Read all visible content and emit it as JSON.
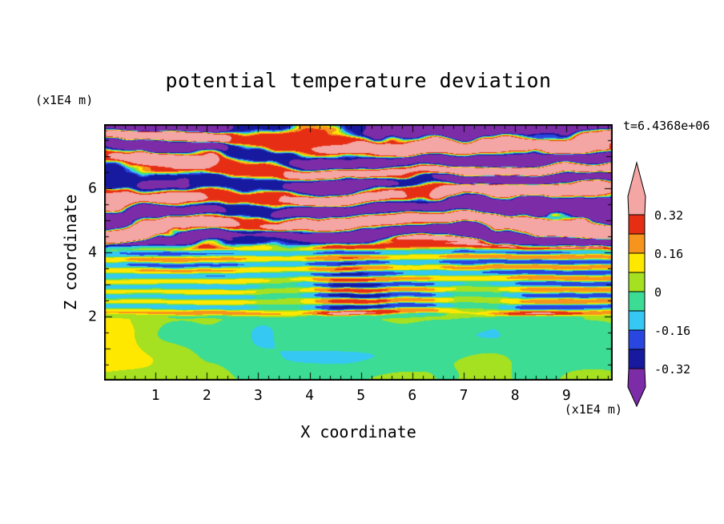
{
  "title": "potential temperature deviation",
  "time_annotation": "t=6.4368e+06",
  "x_axis": {
    "label": "X coordinate",
    "unit": "(x1E4 m)",
    "ticks": [
      1,
      2,
      3,
      4,
      5,
      6,
      7,
      8,
      9
    ]
  },
  "z_axis": {
    "label": "Z coordinate",
    "unit": "(x1E4 m)",
    "ticks": [
      2,
      4,
      6
    ]
  },
  "colorbar": {
    "labels": [
      {
        "value": 0.32,
        "text": "0.32"
      },
      {
        "value": 0.16,
        "text": "0.16"
      },
      {
        "value": 0,
        "text": "0"
      },
      {
        "value": -0.16,
        "text": "-0.16"
      },
      {
        "value": -0.32,
        "text": "-0.32"
      }
    ]
  },
  "chart_data": {
    "type": "heatmap",
    "subtype": "filled-contour",
    "title": "potential temperature deviation",
    "xlabel": "X coordinate",
    "ylabel": "Z coordinate",
    "x_unit": "(x1E4 m)",
    "z_unit": "(x1E4 m)",
    "time_annotation": "t=6.4368e+06",
    "x_range": [
      0,
      9.9
    ],
    "z_range": [
      0,
      8
    ],
    "x_ticks": [
      1,
      2,
      3,
      4,
      5,
      6,
      7,
      8,
      9
    ],
    "z_ticks": [
      2,
      4,
      6
    ],
    "x_minor_step": 0.2,
    "z_minor_step": 0.5,
    "levels": [
      -0.32,
      -0.24,
      -0.16,
      -0.08,
      0,
      0.08,
      0.16,
      0.24,
      0.32
    ],
    "band_colors": [
      "#171a9e",
      "#2a46e0",
      "#35c8f2",
      "#3cdc94",
      "#a5e021",
      "#ffe800",
      "#f7941d",
      "#e62e15"
    ],
    "under_color": "#7d2ca8",
    "over_color": "#f3a6a4",
    "frame_color": "#000000",
    "background": "#ffffff",
    "legend_position": "right",
    "regions": [
      {
        "z": [
          0,
          2
        ],
        "description": "near-zero deviation: spring-green background with large yellow-green blobs"
      },
      {
        "z": [
          2,
          4.3
        ],
        "description": "fine horizontal gravity-wave stripes of moderate amplitude: yellow/orange/red vs cyan/blue stripes on green, strong orange-yellow line at z=2"
      },
      {
        "z": [
          4.3,
          8
        ],
        "description": "thick saturated wave bands exceeding +/-0.32: pink (positive) and purple (negative) layers with thin red/orange/yellow and cyan/blue edge fringes"
      }
    ],
    "field_model": {
      "upper": {
        "freq": 6.8,
        "amp_base": 0.46,
        "amp_var": 0.26,
        "distort": [
          5.6,
          1.9,
          0.7
        ],
        "sharpen": 3.0
      },
      "middle": {
        "freq": 18.5,
        "amp_base": 0.17,
        "amp_var": 0.15,
        "distort": [
          2.6,
          1.1,
          0.5
        ],
        "sharpen": 1.6
      },
      "lower": {
        "amp": 0.16,
        "bias": 0.45
      },
      "blend_lower": [
        1.88,
        2.12
      ],
      "blend_upper": [
        3.9,
        4.55
      ],
      "jet": {
        "z": 2.05,
        "width": 0.09,
        "amp": 0.17
      }
    }
  }
}
